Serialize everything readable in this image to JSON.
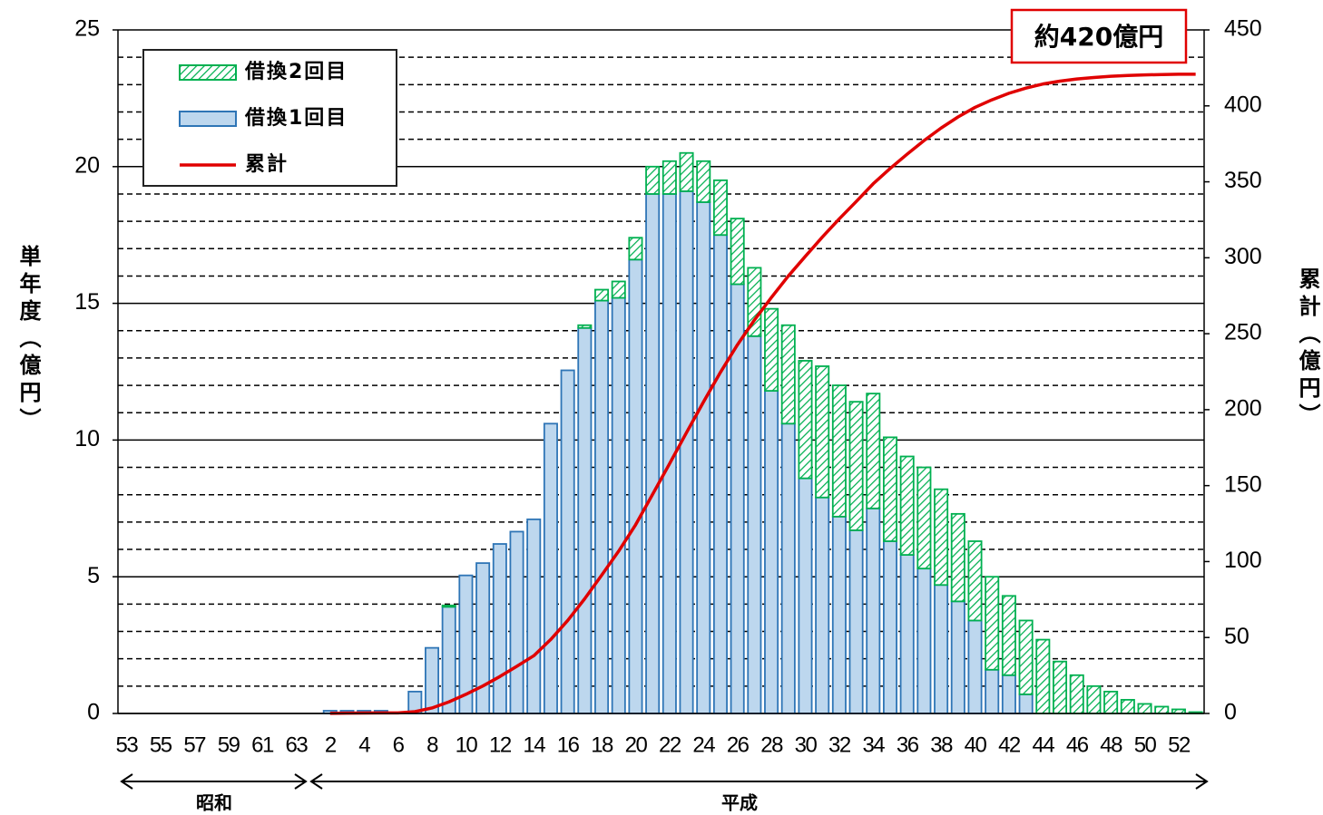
{
  "chart_data": {
    "type": "bar",
    "y_label": "単年度（億円）",
    "y2_label": "累計（億円）",
    "annotations": [
      "約420億円"
    ],
    "eras": [
      "昭和",
      "平成"
    ],
    "categories": [
      "53",
      null,
      "55",
      null,
      "57",
      null,
      "59",
      null,
      "61",
      null,
      "63",
      null,
      "2",
      null,
      "4",
      null,
      "6",
      null,
      "8",
      null,
      "10",
      null,
      "12",
      null,
      "14",
      null,
      "16",
      null,
      "18",
      null,
      "20",
      null,
      "22",
      null,
      "24",
      null,
      "26",
      null,
      "28",
      null,
      "30",
      null,
      "32",
      null,
      "34",
      null,
      "36",
      null,
      "38",
      null,
      "40",
      null,
      "42",
      null,
      "44",
      null,
      "46",
      null,
      "48",
      null,
      "50",
      null,
      "52",
      null
    ],
    "series": [
      {
        "name": "借換2回目",
        "type": "bar",
        "color": "#00b050",
        "hatch": true,
        "values": [
          0,
          0,
          0,
          0,
          0,
          0,
          0,
          0,
          0,
          0,
          0,
          0,
          0,
          0,
          0,
          0,
          0,
          0,
          0,
          0.05,
          0,
          0,
          0,
          0,
          0,
          0,
          0,
          0.1,
          0.4,
          0.6,
          0.8,
          1.0,
          1.2,
          1.4,
          1.5,
          2.0,
          2.4,
          2.5,
          3.0,
          3.6,
          4.3,
          4.8,
          4.8,
          4.7,
          4.2,
          3.8,
          3.6,
          3.7,
          3.5,
          3.2,
          2.9,
          3.4,
          2.9,
          2.7,
          2.7,
          1.9,
          1.4,
          1.0,
          0.8,
          0.5,
          0.35,
          0.25,
          0.15,
          0.05
        ]
      },
      {
        "name": "借換1回目",
        "type": "bar",
        "color": "#bdd7ee",
        "edge": "#2e75b6",
        "values": [
          0,
          0,
          0,
          0,
          0,
          0,
          0,
          0,
          0,
          0,
          0,
          0,
          0.1,
          0.1,
          0.1,
          0.1,
          0,
          0.8,
          2.4,
          3.9,
          5.05,
          5.5,
          6.2,
          6.65,
          7.1,
          10.6,
          12.55,
          14.1,
          15.1,
          15.2,
          16.6,
          19.0,
          19.0,
          19.1,
          18.7,
          17.5,
          15.7,
          13.8,
          11.8,
          10.6,
          8.6,
          7.9,
          7.2,
          6.7,
          7.5,
          6.3,
          5.8,
          5.3,
          4.7,
          4.1,
          3.4,
          1.6,
          1.4,
          0.7,
          0,
          0,
          0,
          0,
          0,
          0,
          0,
          0,
          0,
          0
        ]
      },
      {
        "name": "累計",
        "type": "line",
        "axis": "y2",
        "color": "#e00000",
        "values": [
          null,
          null,
          null,
          null,
          null,
          null,
          null,
          null,
          null,
          null,
          null,
          null,
          0.1,
          0.2,
          0.3,
          0.4,
          0.4,
          1.2,
          3.6,
          7.6,
          12.6,
          18.1,
          24.3,
          31,
          38,
          48.7,
          61.2,
          75.5,
          91,
          106.8,
          124.2,
          144.2,
          164.4,
          184.9,
          205.1,
          224.6,
          242.7,
          259,
          273.8,
          288,
          300.9,
          313.6,
          325.6,
          337,
          348.7,
          358.8,
          368.2,
          377.2,
          385.4,
          392.7,
          399,
          404,
          408.3,
          411.7,
          414.4,
          416.3,
          417.7,
          418.7,
          419.5,
          420,
          420.4,
          420.6,
          420.8,
          420.8
        ]
      }
    ],
    "stack_order": [
      1,
      0
    ],
    "ylim": [
      0,
      25
    ],
    "yticks": [
      0,
      5,
      10,
      15,
      20,
      25
    ],
    "y2lim": [
      0,
      450
    ],
    "y2ticks": [
      0,
      50,
      100,
      150,
      200,
      250,
      300,
      350,
      400,
      450
    ],
    "grid": true,
    "minor_grid": "dashed"
  }
}
